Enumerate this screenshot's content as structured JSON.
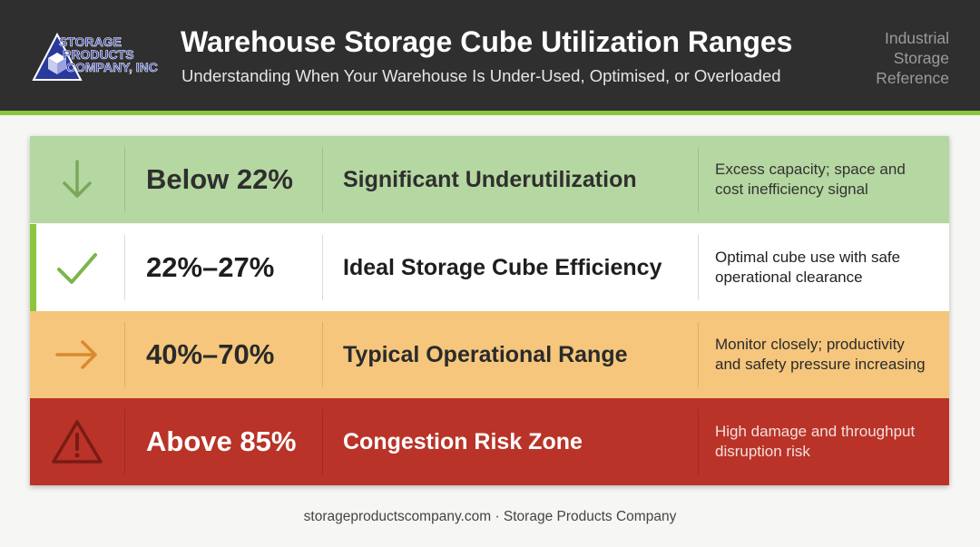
{
  "header": {
    "logo_text": [
      "STORAGE",
      "PRODUCTS",
      "COMPANY, INC"
    ],
    "title": "Warehouse Storage Cube Utilization Ranges",
    "subtitle": "Understanding When Your Warehouse Is Under-Used, Optimised, or Overloaded",
    "side_note": [
      "Industrial",
      "Storage",
      "Reference"
    ]
  },
  "rows": [
    {
      "icon": "arrow-down-icon",
      "range": "Below 22%",
      "label": "Significant Underutilization",
      "description": [
        "Excess capacity; space and",
        "cost inefficiency signal"
      ],
      "color": "#b5d7a1"
    },
    {
      "icon": "checkmark-icon",
      "range": "22%–27%",
      "label": "Ideal Storage Cube Efficiency",
      "description": [
        "Optimal cube use with safe",
        "operational clearance"
      ],
      "color": "#ffffff"
    },
    {
      "icon": "arrow-right-icon",
      "range": "40%–70%",
      "label": "Typical Operational Range",
      "description": [
        "Monitor closely; productivity",
        "and safety pressure increasing"
      ],
      "color": "#f5c67c"
    },
    {
      "icon": "warning-icon",
      "range": "Above 85%",
      "label": "Congestion Risk Zone",
      "description": [
        "High damage and throughput",
        "disruption risk"
      ],
      "color": "#b93328"
    }
  ],
  "colors": {
    "header_bg": "#2f2f2f",
    "accent": "#8cc63f"
  },
  "footer": "storageproductscompany.com · Storage Products Company"
}
